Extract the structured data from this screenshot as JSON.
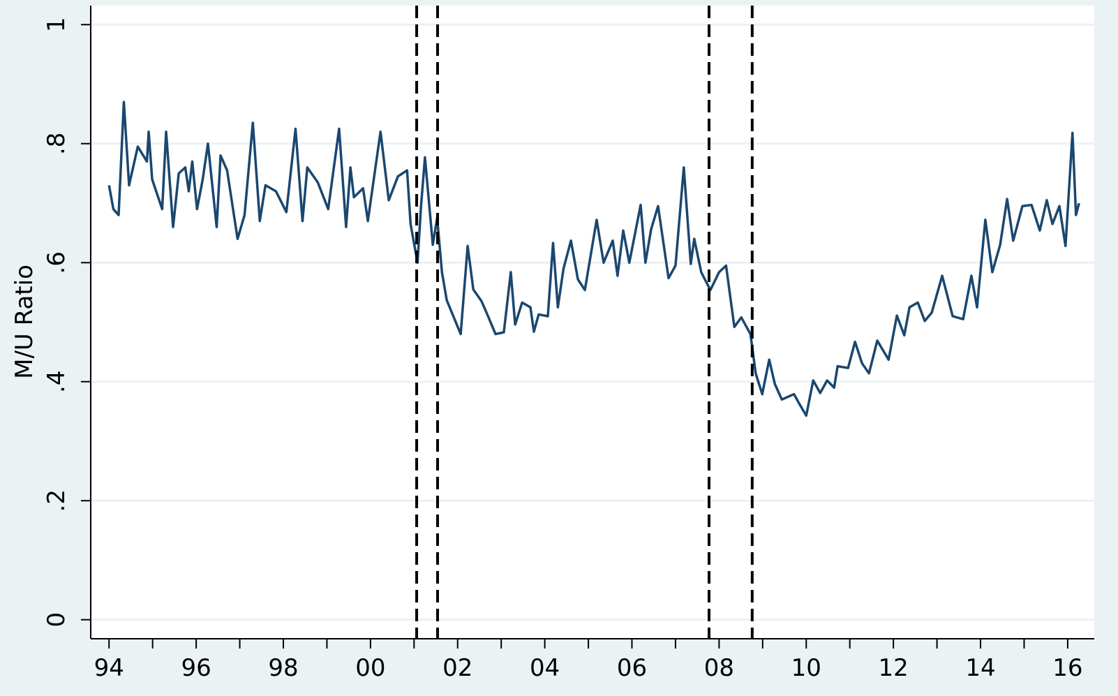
{
  "chart_data": {
    "type": "line",
    "y_label": "M/U Ratio",
    "x": [
      1994.0,
      1994.1,
      1994.22,
      1994.34,
      1994.46,
      1994.66,
      1994.87,
      1994.91,
      1994.99,
      1995.22,
      1995.31,
      1995.47,
      1995.6,
      1995.75,
      1995.83,
      1995.91,
      1996.02,
      1996.15,
      1996.27,
      1996.47,
      1996.56,
      1996.71,
      1996.95,
      1997.11,
      1997.3,
      1997.46,
      1997.59,
      1997.83,
      1998.07,
      1998.28,
      1998.44,
      1998.55,
      1998.79,
      1999.03,
      1999.28,
      1999.44,
      1999.54,
      1999.62,
      1999.83,
      1999.94,
      2000.23,
      2000.42,
      2000.63,
      2000.84,
      2000.92,
      2001.08,
      2001.16,
      2001.25,
      2001.43,
      2001.53,
      2001.64,
      2001.75,
      2002.07,
      2002.23,
      2002.36,
      2002.55,
      2002.71,
      2002.87,
      2003.06,
      2003.22,
      2003.32,
      2003.48,
      2003.67,
      2003.75,
      2003.86,
      2004.07,
      2004.19,
      2004.3,
      2004.43,
      2004.6,
      2004.76,
      2004.92,
      2005.19,
      2005.35,
      2005.56,
      2005.67,
      2005.8,
      2005.94,
      2006.2,
      2006.31,
      2006.44,
      2006.6,
      2006.84,
      2007.0,
      2007.19,
      2007.35,
      2007.43,
      2007.59,
      2007.8,
      2008.0,
      2008.16,
      2008.35,
      2008.51,
      2008.72,
      2008.84,
      2008.99,
      2009.15,
      2009.28,
      2009.44,
      2009.72,
      2009.84,
      2010.0,
      2010.16,
      2010.32,
      2010.48,
      2010.64,
      2010.72,
      2010.96,
      2011.12,
      2011.28,
      2011.44,
      2011.63,
      2011.89,
      2012.08,
      2012.25,
      2012.37,
      2012.56,
      2012.72,
      2012.88,
      2013.12,
      2013.36,
      2013.6,
      2013.79,
      2013.92,
      2014.11,
      2014.27,
      2014.45,
      2014.61,
      2014.75,
      2014.96,
      2015.17,
      2015.36,
      2015.52,
      2015.65,
      2015.81,
      2015.95,
      2016.11,
      2016.19,
      2016.26
    ],
    "series": [
      {
        "name": "M/U Ratio",
        "color": "#1a476f",
        "values": [
          0.73,
          0.69,
          0.68,
          0.87,
          0.73,
          0.795,
          0.77,
          0.82,
          0.74,
          0.69,
          0.82,
          0.66,
          0.75,
          0.76,
          0.72,
          0.77,
          0.69,
          0.74,
          0.8,
          0.66,
          0.78,
          0.755,
          0.64,
          0.68,
          0.835,
          0.67,
          0.73,
          0.72,
          0.685,
          0.825,
          0.67,
          0.76,
          0.735,
          0.69,
          0.825,
          0.66,
          0.76,
          0.71,
          0.725,
          0.67,
          0.82,
          0.705,
          0.745,
          0.755,
          0.665,
          0.6,
          0.695,
          0.777,
          0.63,
          0.675,
          0.584,
          0.537,
          0.48,
          0.628,
          0.555,
          0.535,
          0.508,
          0.48,
          0.483,
          0.584,
          0.496,
          0.533,
          0.525,
          0.484,
          0.513,
          0.51,
          0.633,
          0.525,
          0.59,
          0.637,
          0.572,
          0.554,
          0.672,
          0.6,
          0.637,
          0.578,
          0.654,
          0.6,
          0.697,
          0.6,
          0.656,
          0.695,
          0.574,
          0.595,
          0.76,
          0.598,
          0.64,
          0.584,
          0.554,
          0.584,
          0.595,
          0.492,
          0.508,
          0.48,
          0.414,
          0.379,
          0.437,
          0.396,
          0.37,
          0.379,
          0.363,
          0.343,
          0.402,
          0.381,
          0.402,
          0.39,
          0.426,
          0.423,
          0.467,
          0.431,
          0.414,
          0.469,
          0.437,
          0.511,
          0.478,
          0.525,
          0.533,
          0.502,
          0.516,
          0.578,
          0.51,
          0.505,
          0.578,
          0.525,
          0.672,
          0.584,
          0.63,
          0.707,
          0.637,
          0.695,
          0.697,
          0.654,
          0.705,
          0.665,
          0.695,
          0.628,
          0.818,
          0.68,
          0.7
        ]
      }
    ],
    "vlines": [
      2001.06,
      2001.54,
      2007.77,
      2008.76
    ],
    "xlim": [
      1993.58,
      2016.61
    ],
    "ylim": [
      -0.032,
      1.032
    ],
    "xticks": [
      {
        "value": 1994,
        "label": "94"
      },
      {
        "value": 1996,
        "label": "96"
      },
      {
        "value": 1998,
        "label": "98"
      },
      {
        "value": 2000,
        "label": "00"
      },
      {
        "value": 2002,
        "label": "02"
      },
      {
        "value": 2004,
        "label": "04"
      },
      {
        "value": 2006,
        "label": "06"
      },
      {
        "value": 2008,
        "label": "08"
      },
      {
        "value": 2010,
        "label": "10"
      },
      {
        "value": 2012,
        "label": "12"
      },
      {
        "value": 2014,
        "label": "14"
      },
      {
        "value": 2016,
        "label": "16"
      }
    ],
    "xminorticks": [
      1995,
      1997,
      1999,
      2001,
      2003,
      2005,
      2007,
      2009,
      2011,
      2013,
      2015
    ],
    "yticks": [
      0,
      {
        "value": 0.2,
        "label": ".2"
      },
      {
        "value": 0.4,
        "label": ".4"
      },
      {
        "value": 0.6,
        "label": ".6"
      },
      {
        "value": 0.8,
        "label": ".8"
      },
      1
    ],
    "grid": true
  }
}
